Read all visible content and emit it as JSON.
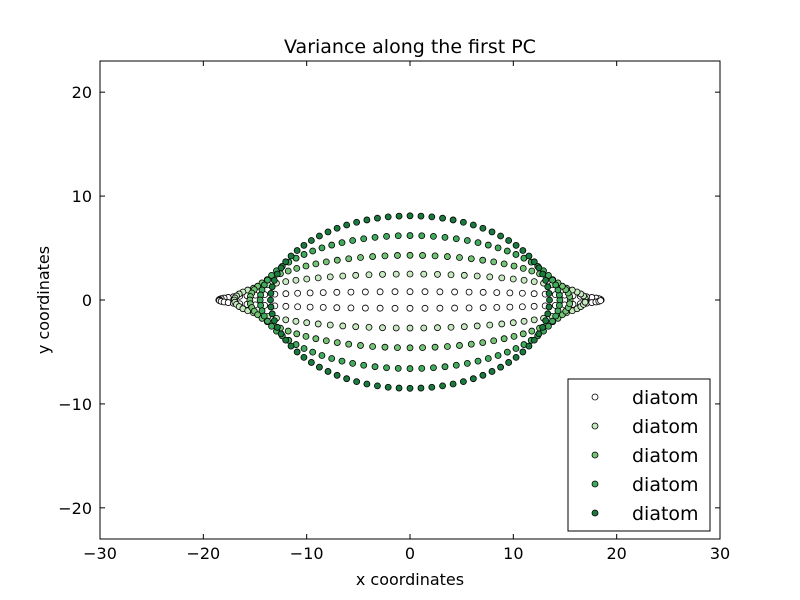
{
  "chart_data": {
    "type": "scatter",
    "title": "Variance along the first PC",
    "xlabel": "x coordinates",
    "ylabel": "y coordinates",
    "xlim": [
      -30,
      30
    ],
    "ylim": [
      -23,
      23
    ],
    "xticks": [
      -30,
      -20,
      -10,
      0,
      10,
      20,
      30
    ],
    "yticks": [
      -20,
      -10,
      0,
      10,
      20
    ],
    "xtick_labels": [
      "−30",
      "−20",
      "−10",
      "0",
      "10",
      "20",
      "30"
    ],
    "ytick_labels": [
      "−20",
      "−10",
      "0",
      "10",
      "20"
    ],
    "grid": false,
    "legend_position": "lower-right",
    "marker_size": 6,
    "series": [
      {
        "name": "diatom",
        "color": "#ffffff",
        "semi_axis_x": 18.5,
        "semi_axis_y_top": 0.8,
        "semi_axis_y_bottom": 0.8,
        "center_x": 0.0,
        "points": 80
      },
      {
        "name": "diatom",
        "color": "#c7e9c0",
        "semi_axis_x": 17.0,
        "semi_axis_y_top": 2.5,
        "semi_axis_y_bottom": 2.7,
        "center_x": 0.0,
        "points": 80
      },
      {
        "name": "diatom",
        "color": "#74c476",
        "semi_axis_x": 15.5,
        "semi_axis_y_top": 4.3,
        "semi_axis_y_bottom": 4.6,
        "center_x": 0.0,
        "points": 80
      },
      {
        "name": "diatom",
        "color": "#41ab5d",
        "semi_axis_x": 14.5,
        "semi_axis_y_top": 6.2,
        "semi_axis_y_bottom": 6.6,
        "center_x": 0.0,
        "points": 80
      },
      {
        "name": "diatom",
        "color": "#1a7a3e",
        "semi_axis_x": 13.5,
        "semi_axis_y_top": 8.1,
        "semi_axis_y_bottom": 8.5,
        "center_x": 0.0,
        "points": 80
      }
    ]
  }
}
